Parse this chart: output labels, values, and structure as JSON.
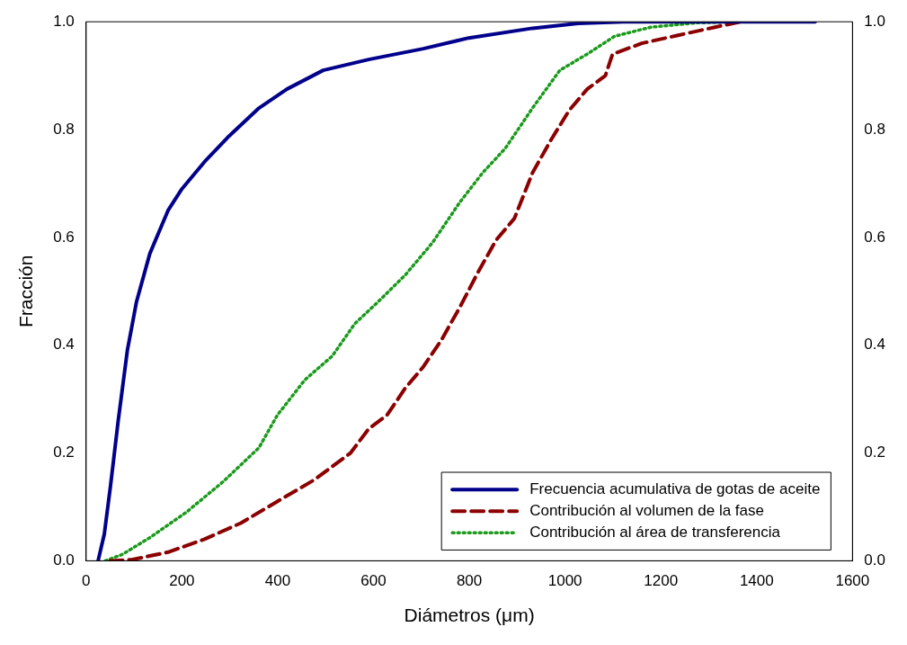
{
  "chart_data": {
    "type": "line",
    "xlabel": "Diámetros (μm)",
    "ylabel": "Fracción",
    "xlim": [
      0,
      1600
    ],
    "xticks": [
      0,
      200,
      400,
      600,
      800,
      1000,
      1200,
      1400,
      1600
    ],
    "ylim": [
      0,
      1.0
    ],
    "yticks": [
      {
        "value": 0,
        "label": "0.0"
      },
      0.2,
      0.4,
      0.6,
      0.8,
      {
        "value": 1,
        "label": "1.0"
      }
    ],
    "y2lim": [
      0,
      1.0
    ],
    "y2ticks": [
      {
        "value": 0,
        "label": "0.0"
      },
      0.2,
      0.4,
      0.6,
      0.8,
      {
        "value": 1,
        "label": "1.0"
      }
    ],
    "grid": false,
    "legend": "bottom right",
    "marker": "none",
    "series": [
      {
        "name": "Frecuencia acumulativa de gotas de aceite",
        "color": "#00008b",
        "line_style": "solid",
        "x": [
          25,
          38,
          51,
          67,
          86,
          105,
          133,
          171,
          200,
          247,
          295,
          361,
          419,
          495,
          590,
          704,
          799,
          932,
          1027,
          1122,
          1522
        ],
        "values": [
          0,
          0.05,
          0.14,
          0.26,
          0.39,
          0.48,
          0.57,
          0.65,
          0.69,
          0.74,
          0.785,
          0.84,
          0.875,
          0.91,
          0.93,
          0.95,
          0.97,
          0.988,
          0.997,
          1.0,
          1.0
        ]
      },
      {
        "name": "Contribución al volumen de la fase",
        "color": "#8b0000",
        "line_style": "dashed",
        "x": [
          50,
          95,
          171,
          247,
          323,
          399,
          476,
          552,
          590,
          628,
          666,
          704,
          742,
          780,
          818,
          856,
          894,
          932,
          970,
          1008,
          1046,
          1084,
          1099,
          1160,
          1236,
          1313,
          1366
        ],
        "values": [
          0,
          0.002,
          0.016,
          0.04,
          0.07,
          0.11,
          0.15,
          0.2,
          0.245,
          0.27,
          0.32,
          0.36,
          0.41,
          0.47,
          0.535,
          0.595,
          0.635,
          0.72,
          0.78,
          0.835,
          0.875,
          0.9,
          0.94,
          0.96,
          0.975,
          0.99,
          1.0
        ]
      },
      {
        "name": "Contribución al área de transferencia",
        "color": "#1a9a1a",
        "line_style": "dotted",
        "x": [
          40,
          76,
          133,
          209,
          285,
          361,
          399,
          457,
          514,
          561,
          609,
          666,
          723,
          780,
          828,
          875,
          932,
          989,
          1046,
          1103,
          1179,
          1274,
          1360
        ],
        "values": [
          0,
          0.012,
          0.043,
          0.09,
          0.146,
          0.21,
          0.27,
          0.336,
          0.38,
          0.44,
          0.48,
          0.53,
          0.59,
          0.665,
          0.72,
          0.765,
          0.84,
          0.91,
          0.94,
          0.973,
          0.99,
          0.998,
          1.0
        ]
      }
    ]
  }
}
